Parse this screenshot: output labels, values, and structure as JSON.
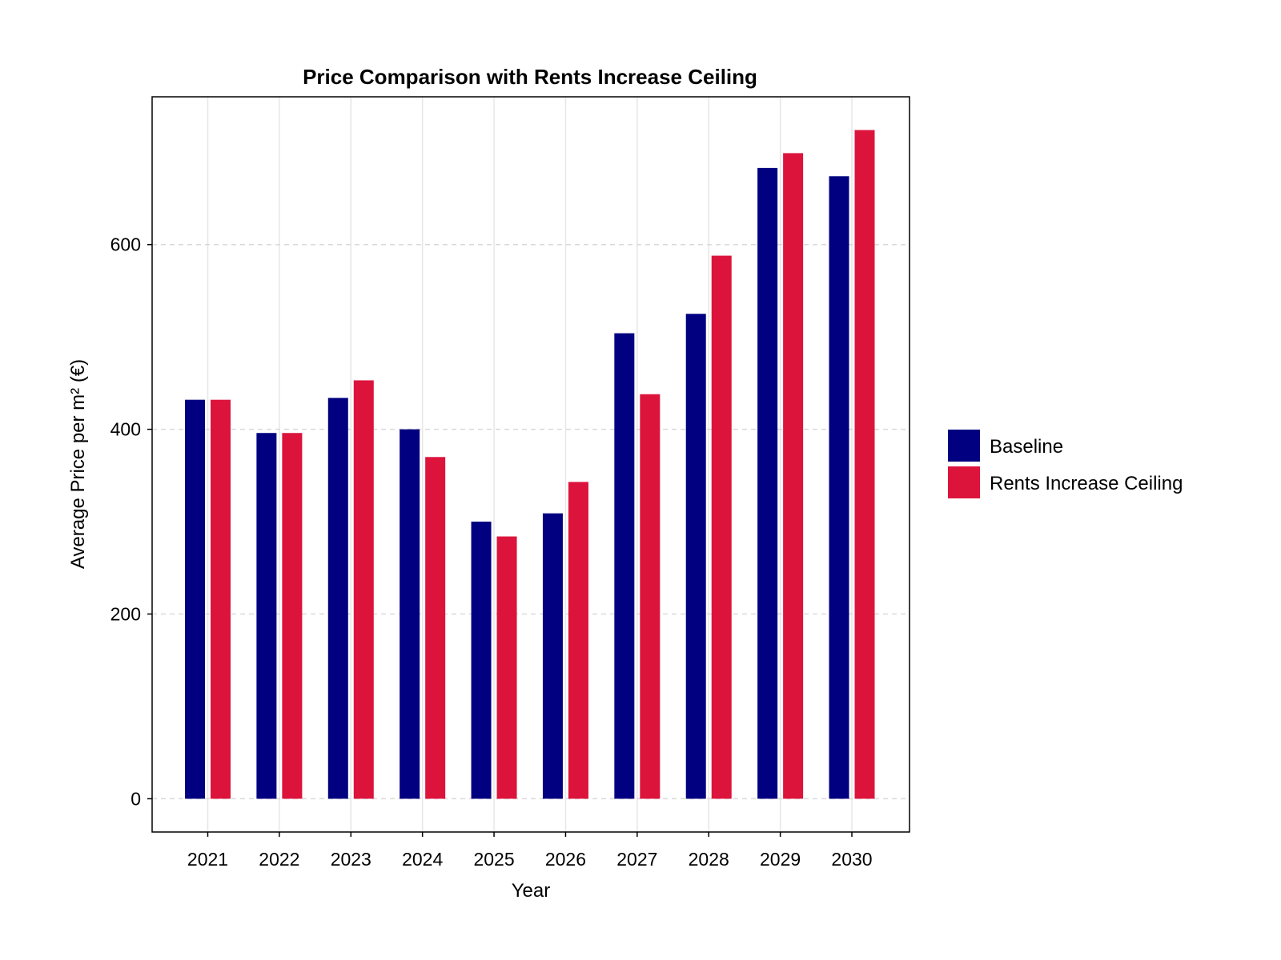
{
  "chart_data": {
    "type": "bar",
    "title": "Price Comparison with Rents Increase Ceiling",
    "xlabel": "Year",
    "ylabel": "Average Price per m² (€)",
    "categories": [
      "2021",
      "2022",
      "2023",
      "2024",
      "2025",
      "2026",
      "2027",
      "2028",
      "2029",
      "2030"
    ],
    "series": [
      {
        "name": "Baseline",
        "color": "#000080",
        "values": [
          432,
          396,
          434,
          400,
          300,
          309,
          504,
          525,
          683,
          674
        ]
      },
      {
        "name": "Rents Increase Ceiling",
        "color": "#dc143c",
        "values": [
          432,
          396,
          453,
          370,
          284,
          343,
          438,
          588,
          699,
          724
        ]
      }
    ],
    "ylim": [
      -36,
      760
    ],
    "yticks": [
      0,
      200,
      400,
      600
    ],
    "grid": true,
    "legend_position": "right"
  }
}
